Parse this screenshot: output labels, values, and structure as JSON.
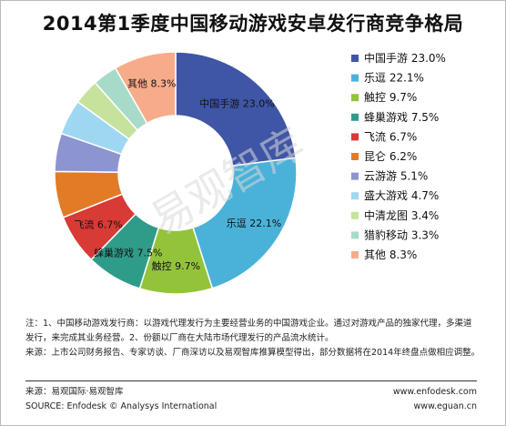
{
  "chart_data": {
    "type": "pie",
    "title": "2014第1季度中国移动游戏安卓发行商竞争格局",
    "slices": [
      {
        "label": "中国手游",
        "value": 23.0,
        "pct_text": "23.0%",
        "color": "#3f55a6"
      },
      {
        "label": "乐逗",
        "value": 22.1,
        "pct_text": "22.1%",
        "color": "#4ab2d9"
      },
      {
        "label": "触控",
        "value": 9.7,
        "pct_text": "9.7%",
        "color": "#93c33b"
      },
      {
        "label": "蜂巢游戏",
        "value": 7.5,
        "pct_text": "7.5%",
        "color": "#2f9c8a"
      },
      {
        "label": "飞流",
        "value": 6.7,
        "pct_text": "6.7%",
        "color": "#d83a35"
      },
      {
        "label": "昆仑",
        "value": 6.2,
        "pct_text": "6.2%",
        "color": "#e27b26"
      },
      {
        "label": "云游游",
        "value": 5.1,
        "pct_text": "5.1%",
        "color": "#8c95cf"
      },
      {
        "label": "盛大游戏",
        "value": 4.7,
        "pct_text": "4.7%",
        "color": "#9fd7f2"
      },
      {
        "label": "中清龙图",
        "value": 3.4,
        "pct_text": "3.4%",
        "color": "#c6e29c"
      },
      {
        "label": "猎豹移动",
        "value": 3.3,
        "pct_text": "3.3%",
        "color": "#a8dac9"
      },
      {
        "label": "其他",
        "value": 8.3,
        "pct_text": "8.3%",
        "color": "#f6ac8a"
      }
    ],
    "donut": true,
    "legend_position": "right"
  },
  "watermark": "易观智库",
  "notes": [
    "注：1、中国移动游戏发行商：以游戏代理发行为主要经营业务的中国游戏企业。通过对游戏产品的独家代理，多渠道发行，来完成其业务经营。2、份额以厂商在大陆市场代理发行的产品流水统计。",
    "来源：上市公司财务报告、专家访谈、厂商深访以及易观智库推算模型得出，部分数据将在2014年终盘点做相应调整。"
  ],
  "footer": {
    "source_cn": "来源：易观国际·易观智库",
    "source_en": "SOURCE: Enfodesk © Analysys International",
    "url1": "www.enfodesk.com",
    "url2": "www.eguan.cn"
  }
}
